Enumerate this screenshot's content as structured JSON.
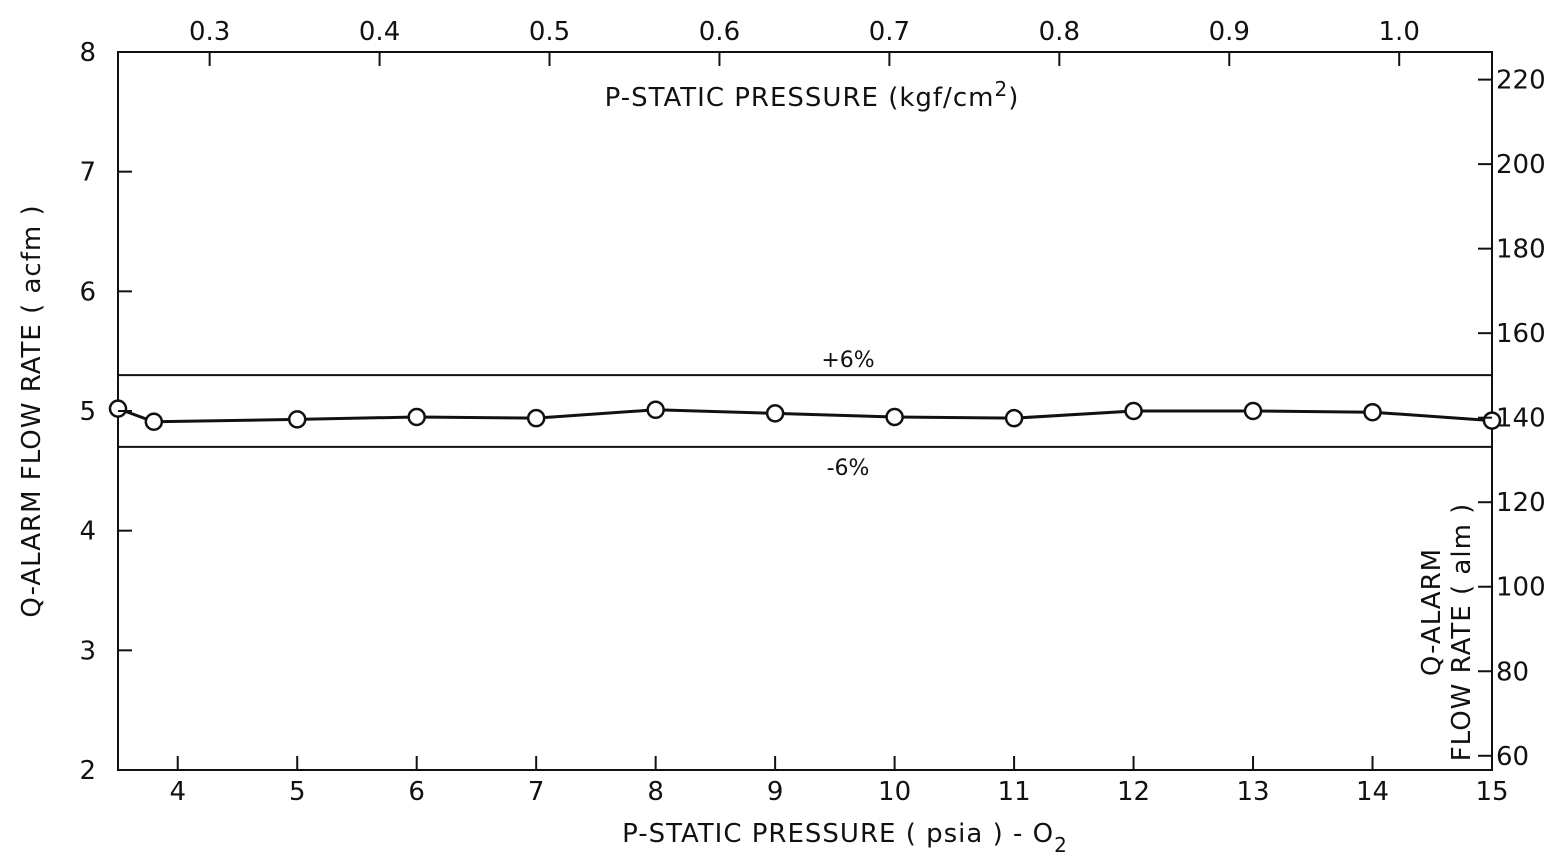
{
  "chart_data": {
    "type": "line",
    "x_axis": {
      "label_main": "P-STATIC PRESSURE ( psia ) - O",
      "label_sub": "2",
      "range": [
        3.5,
        15
      ],
      "ticks": [
        4,
        5,
        6,
        7,
        8,
        9,
        10,
        11,
        12,
        13,
        14,
        15
      ]
    },
    "x_axis_top": {
      "label_main": "P-STATIC PRESSURE (kgf/cm",
      "label_sup": "2",
      "label_end": ")",
      "ticks": [
        {
          "value": 0.3,
          "label": "0.3"
        },
        {
          "value": 0.4,
          "label": "0.4"
        },
        {
          "value": 0.5,
          "label": "0.5"
        },
        {
          "value": 0.6,
          "label": "0.6"
        },
        {
          "value": 0.7,
          "label": "0.7"
        },
        {
          "value": 0.8,
          "label": "0.8"
        },
        {
          "value": 0.9,
          "label": "0.9"
        },
        {
          "value": 1.0,
          "label": "1.0"
        }
      ]
    },
    "y_axis": {
      "label": "Q-ALARM FLOW RATE ( acfm )",
      "range": [
        2,
        8
      ],
      "ticks": [
        2,
        3,
        4,
        5,
        6,
        7,
        8
      ]
    },
    "y_axis_right": {
      "label_line1": "Q-ALARM",
      "label_line2": "FLOW RATE ( alm )",
      "ticks": [
        60,
        80,
        100,
        120,
        140,
        160,
        180,
        200,
        220
      ]
    },
    "bands": [
      {
        "label": "+6%",
        "value": 5.3
      },
      {
        "label": "-6%",
        "value": 4.7
      }
    ],
    "series": [
      {
        "x": [
          3.5,
          3.8,
          5,
          6,
          7,
          8,
          9,
          10,
          11,
          12,
          13,
          14,
          15
        ],
        "y": [
          5.02,
          4.91,
          4.93,
          4.95,
          4.94,
          5.01,
          4.98,
          4.95,
          4.94,
          5.0,
          5.0,
          4.99,
          4.92
        ]
      }
    ],
    "grid": false
  }
}
